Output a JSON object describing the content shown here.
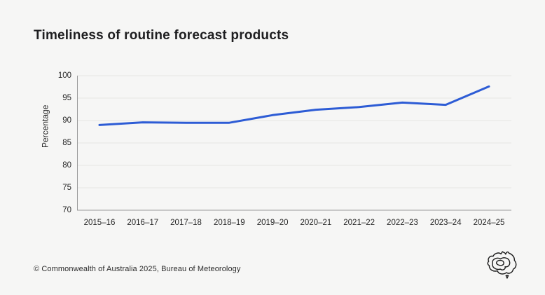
{
  "page": {
    "footer": "© Commonwealth of Australia 2025, Bureau of Meteorology",
    "background_color": "#f6f6f5"
  },
  "chart_data": {
    "type": "line",
    "title": "Timeliness of routine forecast products",
    "xlabel": "",
    "ylabel": "Percentage",
    "categories": [
      "2015–16",
      "2016–17",
      "2017–18",
      "2018–19",
      "2019–20",
      "2020–21",
      "2021–22",
      "2022–23",
      "2023–24",
      "2024–25"
    ],
    "series": [
      {
        "name": "Timeliness of routine forecast products",
        "values": [
          89.0,
          89.6,
          89.5,
          89.5,
          91.2,
          92.4,
          93.0,
          94.0,
          93.5,
          97.6
        ],
        "color": "#2d5cd5"
      }
    ],
    "ylim": [
      70,
      100
    ],
    "ytick_step": 5,
    "grid": true,
    "legend": false,
    "gridline_color": "#e7e7e4",
    "axis_color": "#9a9a9a"
  },
  "logo": {
    "name": "Bureau of Meteorology map logo"
  }
}
